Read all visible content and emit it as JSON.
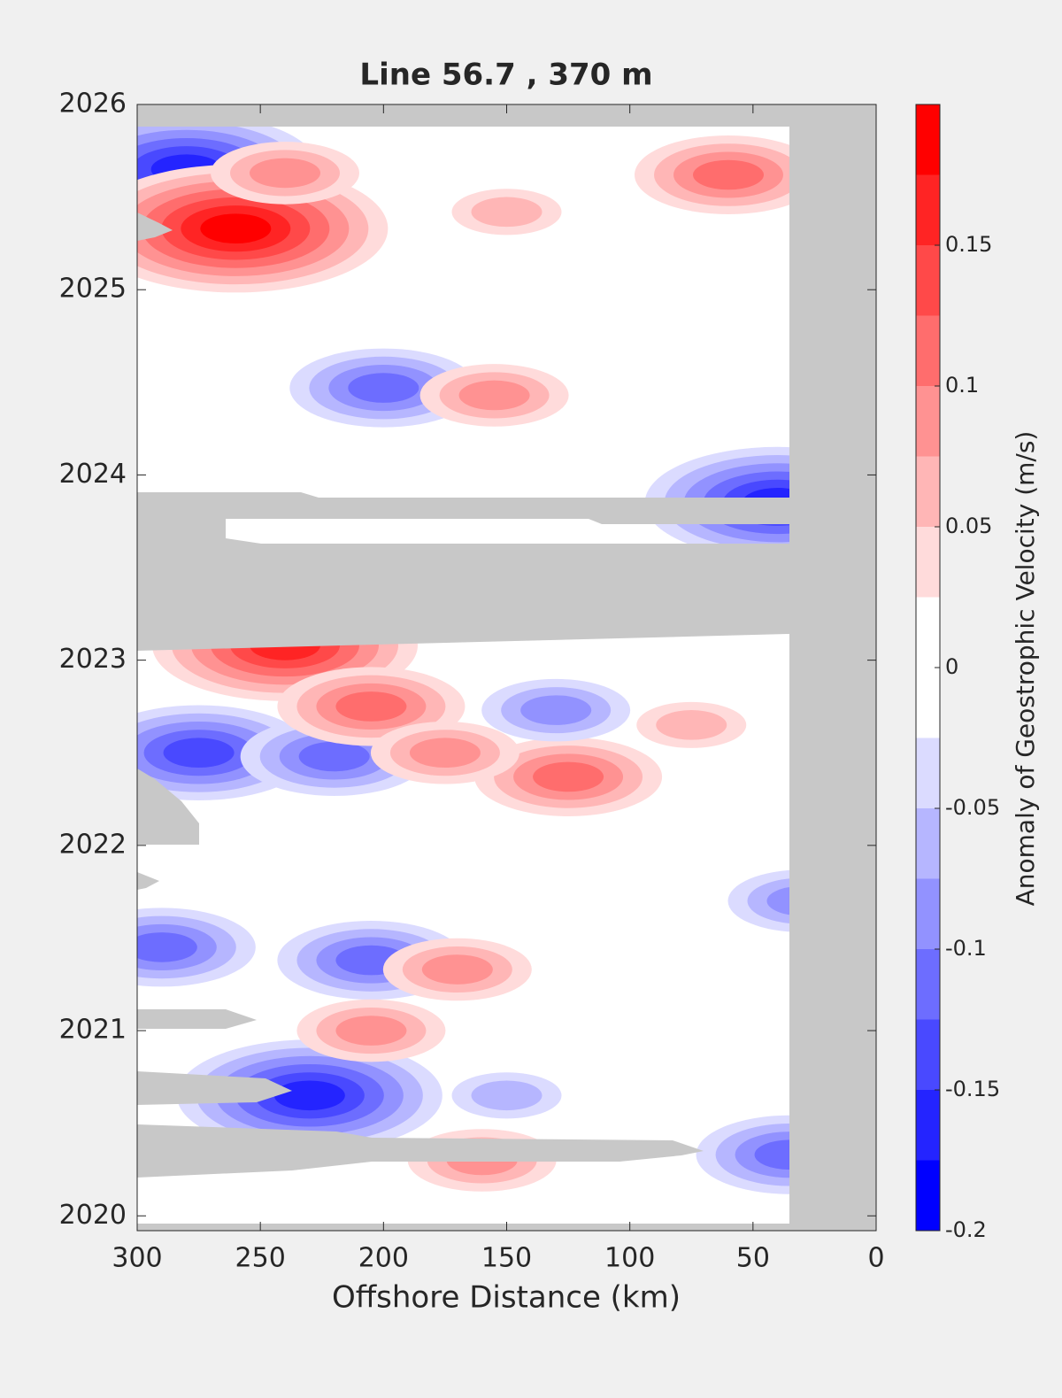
{
  "chart_data": {
    "type": "contour",
    "title": "Line 56.7 , 370 m",
    "xlabel": "Offshore Distance (km)",
    "colorbar_label": "Anomaly of Geostrophic Velocity (m/s)",
    "xlim": [
      300,
      0
    ],
    "xticks": [
      300,
      250,
      200,
      150,
      100,
      50,
      0
    ],
    "ylim": [
      2019.92,
      2026
    ],
    "yticks": [
      2020,
      2021,
      2022,
      2023,
      2024,
      2025,
      2026
    ],
    "clim": [
      -0.2,
      0.2
    ],
    "cticks": [
      -0.2,
      -0.15,
      -0.1,
      -0.05,
      0,
      0.05,
      0.1,
      0.15
    ],
    "level_step": 0.025,
    "colormap": [
      "#0000ff",
      "#2424ff",
      "#4949ff",
      "#6d6dff",
      "#9292ff",
      "#b6b6ff",
      "#dbdbff",
      "#ffffff",
      "#ffffff",
      "#ffdbdb",
      "#ffb6b6",
      "#ff9292",
      "#ff6d6d",
      "#ff4949",
      "#ff2424",
      "#ff0000"
    ],
    "mask_color": "#c8c8c8",
    "features": {
      "x": [
        280,
        260,
        240,
        60,
        150,
        200,
        155,
        240,
        275,
        220,
        205,
        125,
        130,
        175,
        75,
        205,
        170,
        290,
        230,
        35,
        160,
        40,
        30,
        205,
        150
      ],
      "y": [
        2025.65,
        2025.33,
        2025.63,
        2025.62,
        2025.42,
        2024.47,
        2024.43,
        2023.08,
        2022.5,
        2022.48,
        2022.75,
        2022.37,
        2022.73,
        2022.5,
        2022.65,
        2021.38,
        2021.33,
        2021.45,
        2020.65,
        2020.33,
        2020.3,
        2023.85,
        2021.7,
        2021.0,
        2020.65
      ],
      "values": [
        -0.15,
        0.18,
        0.08,
        0.1,
        0.07,
        -0.1,
        0.08,
        0.15,
        -0.13,
        -0.1,
        0.1,
        0.12,
        -0.08,
        0.08,
        0.07,
        -0.12,
        0.08,
        -0.1,
        -0.15,
        -0.12,
        0.08,
        -0.15,
        -0.08,
        0.08,
        -0.07
      ]
    }
  }
}
